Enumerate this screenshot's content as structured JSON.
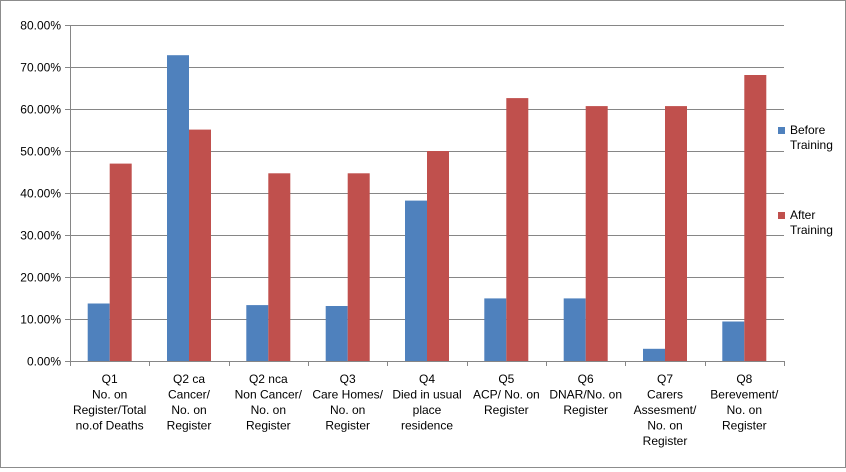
{
  "chart_data": {
    "type": "bar",
    "title": "",
    "xlabel": "",
    "ylabel": "",
    "ylim": [
      0,
      0.8
    ],
    "yticks": [
      "0.00%",
      "10.00%",
      "20.00%",
      "30.00%",
      "40.00%",
      "50.00%",
      "60.00%",
      "70.00%",
      "80.00%"
    ],
    "grid": true,
    "legend_position": "right",
    "categories": [
      [
        "Q1",
        "No. on",
        "Register/Total",
        "no.of Deaths"
      ],
      [
        "Q2 ca",
        "Cancer/",
        "No. on",
        "Register"
      ],
      [
        "Q2 nca",
        "Non Cancer/",
        "No. on",
        "Register"
      ],
      [
        "Q3",
        "Care Homes/",
        "No. on",
        "Register"
      ],
      [
        "Q4",
        "Died in usual",
        "place",
        "residence"
      ],
      [
        "Q5",
        "ACP/ No. on",
        "Register"
      ],
      [
        "Q6",
        "DNAR/No. on",
        "Register"
      ],
      [
        "Q7",
        "Carers",
        "Assesment/",
        "No. on",
        "Register"
      ],
      [
        "Q8",
        "Berevement/",
        "No. on",
        "Register"
      ]
    ],
    "series": [
      {
        "name": [
          "Before",
          "Training"
        ],
        "color": "#4f81bd",
        "values": [
          0.137,
          0.728,
          0.133,
          0.131,
          0.382,
          0.149,
          0.149,
          0.029,
          0.094
        ]
      },
      {
        "name": [
          "After",
          "Training"
        ],
        "color": "#c0504d",
        "values": [
          0.47,
          0.551,
          0.447,
          0.447,
          0.5,
          0.626,
          0.607,
          0.607,
          0.681
        ]
      }
    ]
  }
}
